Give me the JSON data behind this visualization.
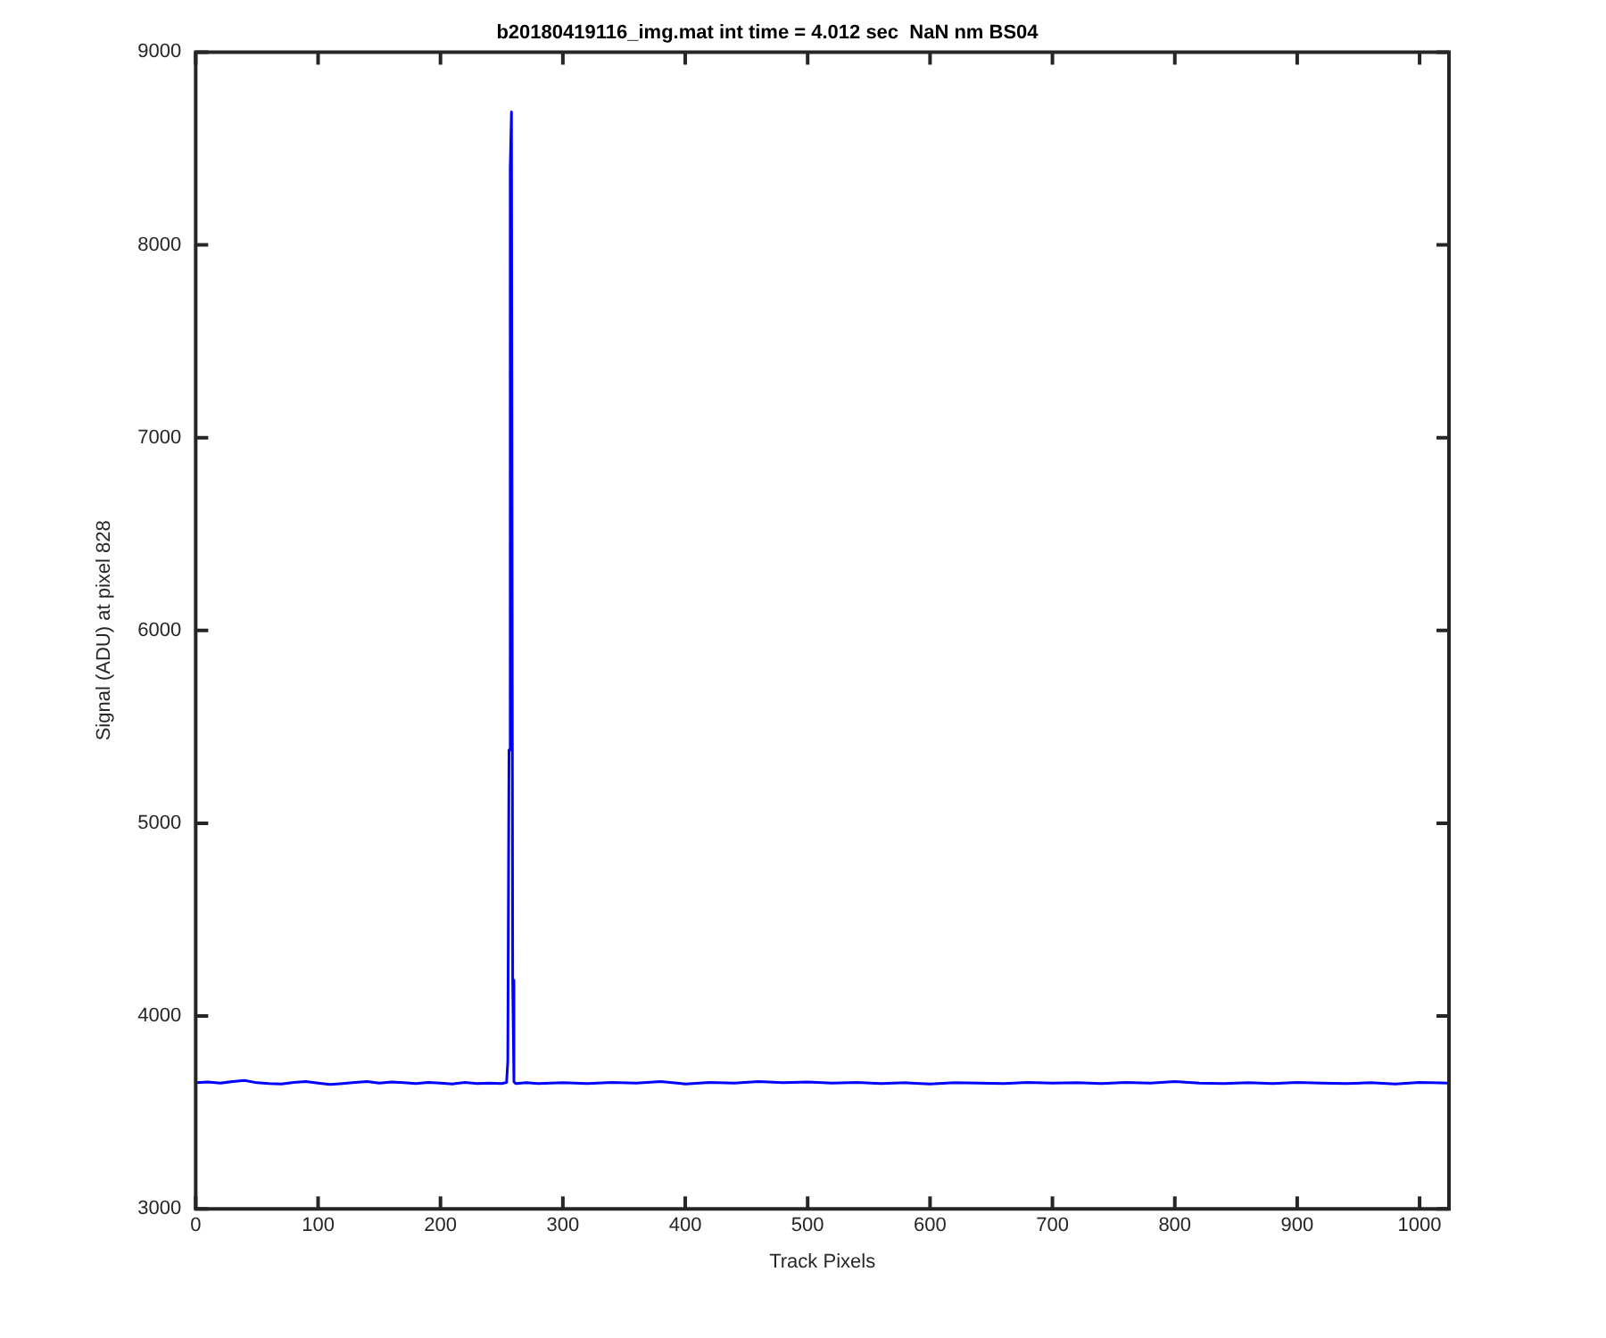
{
  "chart_data": {
    "type": "line",
    "title": "b20180419116_img.mat int time = 4.012 sec  NaN nm BS04",
    "xlabel": "Track Pixels",
    "ylabel": "Signal (ADU) at pixel 828",
    "x": [
      0,
      10,
      20,
      30,
      40,
      50,
      60,
      70,
      80,
      90,
      100,
      110,
      120,
      130,
      140,
      150,
      160,
      170,
      180,
      190,
      200,
      210,
      220,
      230,
      240,
      250,
      254,
      255,
      256,
      257,
      258,
      259,
      260,
      261,
      262,
      270,
      280,
      290,
      300,
      320,
      340,
      360,
      380,
      400,
      420,
      440,
      460,
      480,
      500,
      520,
      540,
      560,
      580,
      600,
      620,
      640,
      660,
      680,
      700,
      720,
      740,
      760,
      780,
      800,
      820,
      840,
      860,
      880,
      900,
      920,
      940,
      960,
      980,
      1000,
      1010,
      1024
    ],
    "series": [
      {
        "color": "#0000ff",
        "values": [
          3655,
          3658,
          3652,
          3660,
          3666,
          3654,
          3650,
          3648,
          3656,
          3660,
          3652,
          3645,
          3650,
          3656,
          3660,
          3652,
          3658,
          3654,
          3650,
          3656,
          3652,
          3648,
          3656,
          3650,
          3652,
          3650,
          3656,
          3765,
          5380,
          8400,
          8690,
          4186,
          3660,
          3652,
          3650,
          3654,
          3650,
          3652,
          3655,
          3650,
          3656,
          3652,
          3660,
          3648,
          3656,
          3652,
          3660,
          3654,
          3658,
          3652,
          3656,
          3650,
          3654,
          3648,
          3655,
          3652,
          3650,
          3656,
          3652,
          3654,
          3650,
          3656,
          3652,
          3660,
          3652,
          3650,
          3654,
          3650,
          3656,
          3652,
          3650,
          3654,
          3648,
          3656,
          3654,
          3652
        ]
      }
    ],
    "xlim": [
      0,
      1024
    ],
    "xticks": [
      0,
      100,
      200,
      300,
      400,
      500,
      600,
      700,
      800,
      900,
      1000
    ],
    "ylim": [
      3000,
      9000
    ],
    "yticks": [
      3000,
      4000,
      5000,
      6000,
      7000,
      8000,
      9000
    ],
    "grid": false,
    "legend": false,
    "marker": "none",
    "line_style": "solid"
  }
}
